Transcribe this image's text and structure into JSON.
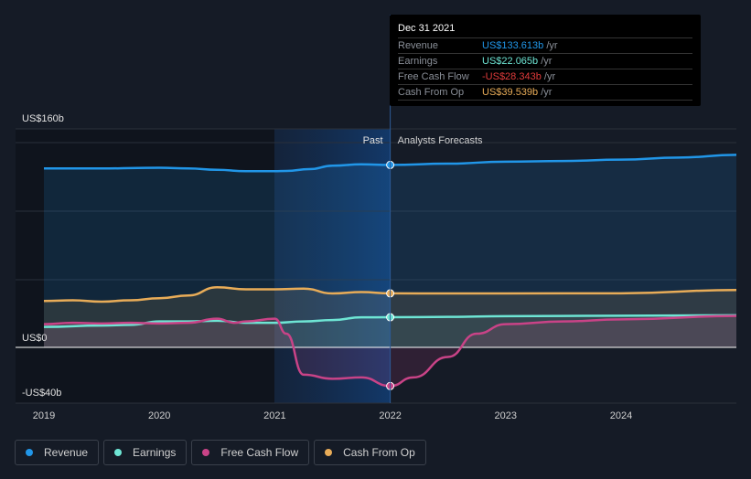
{
  "chart_data": {
    "type": "line",
    "title": "",
    "y_labels": {
      "top": "US$160b",
      "zero": "US$0",
      "bottom": "-US$40b"
    },
    "ylim": [
      -40,
      160
    ],
    "x_ticks": [
      "2019",
      "2020",
      "2021",
      "2022",
      "2023",
      "2024"
    ],
    "x_tick_values": [
      2019,
      2020,
      2021,
      2022,
      2023,
      2024
    ],
    "xlim": [
      2018.75,
      2024.99
    ],
    "regions": {
      "past": "Past",
      "forecast": "Analysts Forecasts",
      "divider": 2022.0
    },
    "series": [
      {
        "name": "Revenue",
        "color": "#2196e8",
        "x": [
          2019,
          2019.5,
          2020,
          2020.25,
          2020.5,
          2020.75,
          2021,
          2021.1,
          2021.3,
          2021.5,
          2021.75,
          2022,
          2022.5,
          2023,
          2023.5,
          2024,
          2024.5,
          2025
        ],
        "y": [
          131,
          131,
          131.5,
          131,
          130,
          129,
          129,
          129.2,
          130.5,
          133,
          134,
          133.6,
          134.5,
          136,
          136.5,
          137.5,
          139,
          141
        ]
      },
      {
        "name": "Earnings",
        "color": "#6ee5d4",
        "x": [
          2019,
          2019.5,
          2019.75,
          2020,
          2020.25,
          2020.5,
          2020.75,
          2021,
          2021.25,
          2021.5,
          2021.75,
          2022,
          2022.5,
          2023,
          2024,
          2025
        ],
        "y": [
          15,
          16,
          16.5,
          19,
          19,
          19.5,
          18,
          18,
          19,
          20,
          22,
          22.07,
          22.3,
          22.8,
          23.2,
          23.5
        ]
      },
      {
        "name": "Free Cash Flow",
        "color": "#c94387",
        "x": [
          2019,
          2019.25,
          2019.5,
          2019.75,
          2020,
          2020.25,
          2020.5,
          2020.65,
          2020.75,
          2021,
          2021.1,
          2021.25,
          2021.5,
          2021.75,
          2022,
          2022.2,
          2022.5,
          2022.75,
          2023,
          2023.5,
          2024,
          2025
        ],
        "y": [
          17,
          18,
          17.5,
          18,
          17.5,
          18,
          21,
          18,
          19,
          21,
          10,
          -20,
          -23,
          -22,
          -28.3,
          -22,
          -7,
          10,
          17,
          19,
          20.5,
          23
        ]
      },
      {
        "name": "Cash From Op",
        "color": "#e8ac58",
        "x": [
          2019,
          2019.25,
          2019.5,
          2019.75,
          2020,
          2020.25,
          2020.5,
          2020.75,
          2021,
          2021.25,
          2021.5,
          2021.75,
          2022,
          2022.5,
          2023,
          2024,
          2025
        ],
        "y": [
          34,
          34.5,
          33.5,
          34.5,
          36,
          38,
          44,
          42.5,
          42.5,
          43,
          39.5,
          40.5,
          39.54,
          39.5,
          39.5,
          39.6,
          42
        ]
      }
    ],
    "tooltip": {
      "date": "Dec 31 2021",
      "rows": [
        {
          "label": "Revenue",
          "value": "US$133.613b",
          "unit": "/yr",
          "color": "#2196e8"
        },
        {
          "label": "Earnings",
          "value": "US$22.065b",
          "unit": "/yr",
          "color": "#6ee5d4"
        },
        {
          "label": "Free Cash Flow",
          "value": "-US$28.343b",
          "unit": "/yr",
          "color": "#e23b3b"
        },
        {
          "label": "Cash From Op",
          "value": "US$39.539b",
          "unit": "/yr",
          "color": "#e8ac58"
        }
      ]
    }
  }
}
